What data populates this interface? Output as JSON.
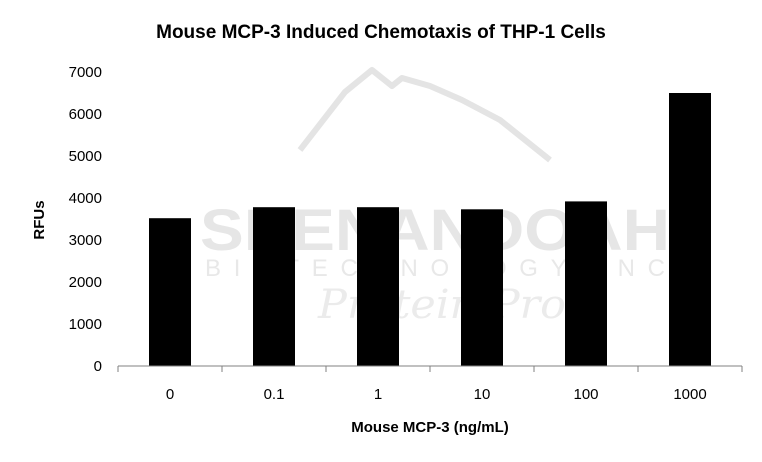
{
  "chart_data": {
    "type": "bar",
    "title": "Mouse MCP-3 Induced Chemotaxis of THP-1 Cells",
    "xlabel": "Mouse MCP-3 (ng/mL)",
    "ylabel": "RFUs",
    "categories": [
      "0",
      "0.1",
      "1",
      "10",
      "100",
      "1000"
    ],
    "values": [
      3520,
      3780,
      3780,
      3730,
      3920,
      6500
    ],
    "ylim": [
      0,
      7000
    ],
    "yticks": [
      "0",
      "1000",
      "2000",
      "3000",
      "4000",
      "5000",
      "6000",
      "7000"
    ],
    "grid": false,
    "legend": "none",
    "bar_color": "#000000",
    "axis_color": "#808080"
  },
  "watermark": {
    "line1": "SHENANDOAH",
    "line2": "BIOTECHNOLOGY INC",
    "line3": "Protein Pros"
  }
}
